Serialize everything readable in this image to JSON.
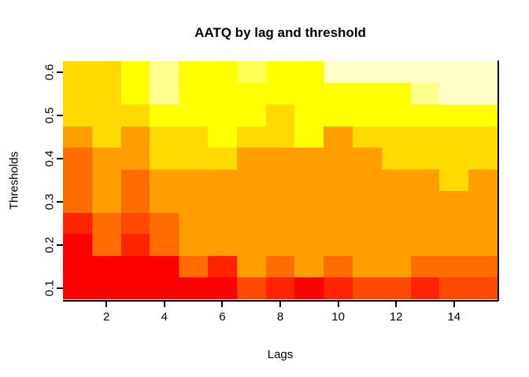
{
  "figure": {
    "title": "AATQ by lag and threshold",
    "xlabel": "Lags",
    "ylabel": "Thresholds"
  },
  "chart_data": {
    "type": "heatmap",
    "title": "AATQ by lag and threshold",
    "xlabel": "Lags",
    "ylabel": "Thresholds",
    "x_name": "lag",
    "x_values": [
      1,
      2,
      3,
      4,
      5,
      6,
      7,
      8,
      9,
      10,
      11,
      12,
      13,
      14,
      15
    ],
    "x_ticks": [
      2,
      4,
      6,
      8,
      10,
      12,
      14
    ],
    "x_tick_labels": [
      "2",
      "4",
      "6",
      "8",
      "10",
      "12",
      "14"
    ],
    "x_range": [
      0.5,
      15.5
    ],
    "y_name": "threshold",
    "y_values": [
      0.1,
      0.15,
      0.2,
      0.25,
      0.3,
      0.35,
      0.4,
      0.45,
      0.5,
      0.55,
      0.6
    ],
    "y_ticks": [
      0.1,
      0.2,
      0.3,
      0.4,
      0.5,
      0.6
    ],
    "y_tick_labels": [
      "0.1",
      "0.2",
      "0.3",
      "0.4",
      "0.5",
      "0.6"
    ],
    "y_range": [
      0.075,
      0.625
    ],
    "grid": false,
    "legend": "none",
    "palette": {
      "R": "#FF0000",
      "R2": "#FF2400",
      "OR": "#FF4900",
      "D": "#FF6D00",
      "O": "#FF9E00",
      "G": "#FFD900",
      "Y": "#FFFF00",
      "P4": "#FFFF55",
      "P8": "#FFFF8C",
      "C": "#FFFFC8"
    },
    "palette_order_low_to_high": [
      "R",
      "R2",
      "OR",
      "D",
      "O",
      "G",
      "Y",
      "P4",
      "P8",
      "C"
    ],
    "rows_top_to_bottom": [
      {
        "threshold": 0.6,
        "cells": [
          "G",
          "G",
          "Y",
          "P8",
          "Y",
          "Y",
          "P4",
          "Y",
          "Y",
          "C",
          "C",
          "C",
          "C",
          "C",
          "C"
        ]
      },
      {
        "threshold": 0.55,
        "cells": [
          "G",
          "G",
          "Y",
          "P8",
          "Y",
          "Y",
          "Y",
          "Y",
          "Y",
          "Y",
          "Y",
          "Y",
          "P8",
          "C",
          "C"
        ]
      },
      {
        "threshold": 0.5,
        "cells": [
          "G",
          "G",
          "G",
          "Y",
          "Y",
          "Y",
          "Y",
          "G",
          "Y",
          "Y",
          "Y",
          "Y",
          "Y",
          "Y",
          "Y"
        ]
      },
      {
        "threshold": 0.45,
        "cells": [
          "O",
          "G",
          "O",
          "G",
          "G",
          "Y",
          "G",
          "G",
          "Y",
          "O",
          "G",
          "G",
          "G",
          "G",
          "G"
        ]
      },
      {
        "threshold": 0.4,
        "cells": [
          "D",
          "O",
          "O",
          "G",
          "G",
          "G",
          "O",
          "O",
          "O",
          "O",
          "O",
          "G",
          "G",
          "G",
          "G"
        ]
      },
      {
        "threshold": 0.35,
        "cells": [
          "D",
          "O",
          "D",
          "O",
          "O",
          "O",
          "O",
          "O",
          "O",
          "O",
          "O",
          "O",
          "O",
          "G",
          "O"
        ]
      },
      {
        "threshold": 0.3,
        "cells": [
          "D",
          "O",
          "D",
          "O",
          "O",
          "O",
          "O",
          "O",
          "O",
          "O",
          "O",
          "O",
          "O",
          "O",
          "O"
        ]
      },
      {
        "threshold": 0.25,
        "cells": [
          "R2",
          "D",
          "OR",
          "D",
          "O",
          "O",
          "O",
          "O",
          "O",
          "O",
          "O",
          "O",
          "O",
          "O",
          "O"
        ]
      },
      {
        "threshold": 0.2,
        "cells": [
          "R",
          "D",
          "R2",
          "D",
          "O",
          "O",
          "O",
          "O",
          "O",
          "O",
          "O",
          "O",
          "O",
          "O",
          "O"
        ]
      },
      {
        "threshold": 0.15,
        "cells": [
          "R",
          "R",
          "R",
          "R",
          "D",
          "R2",
          "O",
          "D",
          "O",
          "D",
          "O",
          "O",
          "D",
          "D",
          "D"
        ]
      },
      {
        "threshold": 0.1,
        "cells": [
          "R",
          "R",
          "R",
          "R",
          "R",
          "R",
          "OR",
          "R2",
          "R",
          "R2",
          "OR",
          "OR",
          "R2",
          "OR",
          "OR"
        ]
      }
    ]
  }
}
